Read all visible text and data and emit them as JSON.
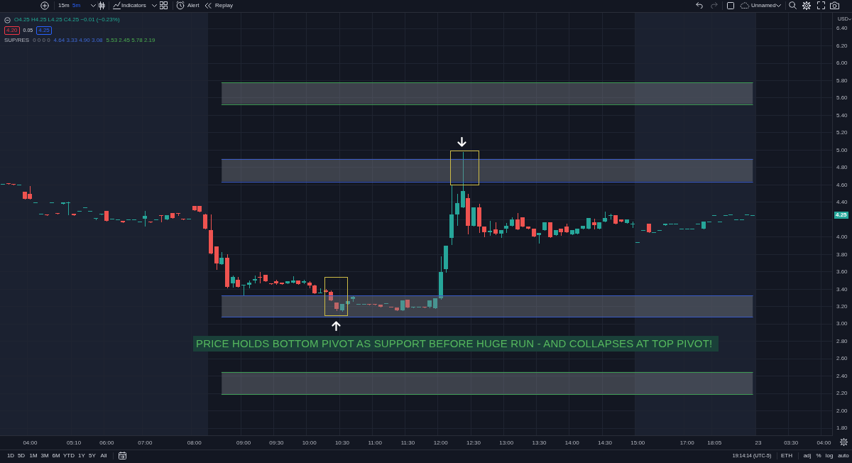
{
  "chart_data": {
    "type": "candlestick",
    "categories": [
      null,
      null,
      null,
      null,
      null,
      "04:00",
      null,
      null,
      null,
      null,
      null,
      null,
      null,
      "05:10",
      null,
      null,
      null,
      null,
      null,
      "06:00",
      null,
      null,
      null,
      null,
      null,
      null,
      "07:00",
      null,
      null,
      null,
      null,
      null,
      null,
      null,
      null,
      "08:00",
      null,
      null,
      null,
      null,
      null,
      null,
      null,
      null,
      "09:00",
      null,
      null,
      null,
      null,
      null,
      "09:30",
      null,
      null,
      null,
      null,
      null,
      "10:00",
      null,
      null,
      null,
      null,
      null,
      "10:30",
      null,
      null,
      null,
      null,
      null,
      "11:00",
      null,
      null,
      null,
      null,
      null,
      "11:30",
      null,
      null,
      null,
      null,
      null,
      "12:00",
      null,
      null,
      null,
      null,
      null,
      "12:30",
      null,
      null,
      null,
      null,
      null,
      "13:00",
      null,
      null,
      null,
      null,
      null,
      "13:30",
      null,
      null,
      null,
      null,
      null,
      "14:00",
      null,
      null,
      null,
      null,
      null,
      "14:30",
      null,
      null,
      null,
      null,
      null,
      "15:00",
      null,
      null,
      null,
      null,
      null,
      null,
      null,
      null,
      "17:00",
      null,
      null,
      null,
      null,
      "18:05",
      null,
      null,
      null,
      null,
      null,
      null,
      null,
      "23",
      null,
      null,
      null,
      null,
      null,
      "03:30",
      null,
      null,
      null,
      null,
      null,
      "04:00",
      null
    ],
    "ohlc": [
      [
        4.61,
        4.61,
        4.61,
        4.61
      ],
      [
        4.62,
        4.62,
        4.61,
        4.61
      ],
      [
        4.61,
        4.61,
        4.6,
        4.6
      ],
      [
        4.6,
        4.6,
        4.6,
        4.6
      ],
      [
        4.52,
        4.52,
        4.44,
        4.44
      ],
      [
        4.5,
        4.59,
        4.44,
        4.44
      ],
      [
        4.4,
        4.4,
        4.4,
        4.4
      ],
      [
        4.27,
        4.27,
        4.27,
        4.27
      ],
      [
        4.26,
        4.26,
        4.25,
        4.25
      ],
      [
        4.4,
        4.4,
        4.4,
        4.4
      ],
      [
        4.28,
        4.28,
        4.27,
        4.27
      ],
      [
        4.38,
        4.4,
        4.38,
        4.4
      ],
      [
        4.4,
        4.41,
        4.26,
        4.4
      ],
      [
        4.27,
        4.27,
        4.25,
        4.25
      ],
      [
        4.3,
        4.3,
        4.3,
        4.3
      ],
      [
        4.34,
        4.34,
        4.34,
        4.34
      ],
      [
        4.3,
        4.3,
        4.3,
        4.3
      ],
      [
        4.22,
        4.22,
        4.2,
        4.22
      ],
      [
        4.26,
        4.27,
        4.26,
        4.27
      ],
      [
        4.3,
        4.3,
        4.19,
        4.19
      ],
      [
        4.21,
        4.21,
        4.21,
        4.21
      ],
      [
        4.2,
        4.2,
        4.2,
        4.2
      ],
      [
        4.19,
        4.19,
        4.17,
        4.17
      ],
      [
        4.2,
        4.2,
        4.2,
        4.2
      ],
      [
        4.2,
        4.2,
        4.2,
        4.2
      ],
      [
        4.18,
        4.18,
        4.18,
        4.18
      ],
      [
        4.21,
        4.3,
        4.13,
        4.24
      ],
      [
        4.18,
        4.18,
        4.17,
        4.17
      ],
      [
        4.2,
        4.2,
        4.2,
        4.2
      ],
      [
        4.25,
        4.25,
        4.18,
        4.24
      ],
      [
        4.2,
        4.25,
        4.2,
        4.25
      ],
      [
        4.28,
        4.28,
        4.22,
        4.22
      ],
      [
        4.28,
        4.28,
        4.25,
        4.27
      ],
      [
        4.21,
        4.21,
        4.2,
        4.2
      ],
      [
        4.21,
        4.21,
        4.21,
        4.21
      ],
      [
        4.36,
        4.36,
        4.31,
        4.31
      ],
      [
        4.36,
        4.36,
        4.29,
        4.29
      ],
      [
        4.26,
        4.27,
        4.1,
        4.1
      ],
      [
        4.08,
        4.26,
        3.81,
        3.81
      ],
      [
        3.89,
        3.89,
        3.63,
        3.7
      ],
      [
        3.69,
        3.83,
        3.69,
        3.76
      ],
      [
        3.76,
        3.8,
        3.42,
        3.43
      ],
      [
        3.47,
        3.56,
        3.43,
        3.54
      ],
      [
        3.51,
        3.54,
        3.43,
        3.43
      ],
      [
        3.44,
        3.45,
        3.33,
        3.45
      ],
      [
        3.45,
        3.5,
        3.42,
        3.48
      ],
      [
        3.5,
        3.56,
        3.48,
        3.52
      ],
      [
        3.54,
        3.6,
        3.48,
        3.53
      ],
      [
        3.57,
        3.57,
        3.49,
        3.49
      ],
      [
        3.47,
        3.47,
        3.46,
        3.46
      ],
      [
        3.49,
        3.51,
        3.46,
        3.47
      ],
      [
        3.48,
        3.48,
        3.46,
        3.46
      ],
      [
        3.47,
        3.49,
        3.47,
        3.49
      ],
      [
        3.48,
        3.55,
        3.48,
        3.5
      ],
      [
        3.5,
        3.5,
        3.46,
        3.46
      ],
      [
        3.48,
        3.51,
        3.47,
        3.49
      ],
      [
        3.48,
        3.49,
        3.42,
        3.44
      ],
      [
        3.44,
        3.45,
        3.35,
        3.35
      ],
      [
        3.36,
        3.41,
        3.36,
        3.36
      ],
      [
        3.39,
        3.4,
        3.37,
        3.37
      ],
      [
        3.37,
        3.39,
        3.27,
        3.27
      ],
      [
        3.25,
        3.25,
        3.16,
        3.17
      ],
      [
        3.16,
        3.23,
        3.15,
        3.23
      ],
      [
        3.23,
        3.26,
        3.23,
        3.26
      ],
      [
        3.29,
        3.32,
        3.26,
        3.31
      ],
      [
        3.23,
        3.23,
        3.23,
        3.23
      ],
      [
        3.23,
        3.23,
        3.23,
        3.23
      ],
      [
        3.23,
        3.23,
        3.22,
        3.22
      ],
      [
        3.23,
        3.23,
        3.22,
        3.22
      ],
      [
        3.22,
        3.22,
        3.2,
        3.2
      ],
      [
        3.24,
        3.24,
        3.24,
        3.24
      ],
      [
        3.2,
        3.2,
        3.2,
        3.2
      ],
      [
        3.19,
        3.19,
        3.16,
        3.16
      ],
      [
        3.16,
        3.27,
        3.16,
        3.27
      ],
      [
        3.28,
        3.28,
        3.19,
        3.19
      ],
      [
        3.19,
        3.2,
        3.19,
        3.2
      ],
      [
        3.2,
        3.2,
        3.2,
        3.2
      ],
      [
        3.2,
        3.2,
        3.19,
        3.19
      ],
      [
        3.2,
        3.27,
        3.19,
        3.27
      ],
      [
        3.18,
        3.3,
        3.18,
        3.3
      ],
      [
        3.3,
        3.78,
        3.29,
        3.6
      ],
      [
        3.63,
        3.9,
        3.6,
        3.9
      ],
      [
        3.99,
        4.6,
        3.92,
        4.26
      ],
      [
        4.26,
        4.5,
        4.14,
        4.39
      ],
      [
        4.34,
        4.98,
        4.34,
        4.53
      ],
      [
        4.45,
        4.5,
        4.04,
        4.13
      ],
      [
        4.13,
        4.34,
        4.13,
        4.34
      ],
      [
        4.34,
        4.38,
        4.06,
        4.12
      ],
      [
        4.12,
        4.12,
        4.01,
        4.06
      ],
      [
        4.06,
        4.19,
        4.02,
        4.07
      ],
      [
        4.09,
        4.17,
        4.03,
        4.04
      ],
      [
        4.04,
        4.08,
        4,
        4.08
      ],
      [
        4.1,
        4.16,
        4.06,
        4.13
      ],
      [
        4.13,
        4.23,
        4.13,
        4.2
      ],
      [
        4.2,
        4.28,
        4.09,
        4.09
      ],
      [
        4.23,
        4.23,
        4.12,
        4.12
      ],
      [
        4.12,
        4.12,
        4.1,
        4.1
      ],
      [
        4.1,
        4.1,
        4.01,
        4.01
      ],
      [
        4.02,
        4.05,
        3.93,
        4.05
      ],
      [
        4.08,
        4.17,
        4.08,
        4.17
      ],
      [
        4.17,
        4.17,
        4,
        4
      ],
      [
        4.02,
        4.08,
        4.02,
        4.08
      ],
      [
        4.1,
        4.1,
        4.02,
        4.06
      ],
      [
        4.12,
        4.15,
        4.06,
        4.06
      ],
      [
        4.03,
        4.08,
        4.03,
        4.08
      ],
      [
        4.04,
        4.1,
        4.04,
        4.1
      ],
      [
        4.1,
        4.13,
        4.1,
        4.13
      ],
      [
        4.1,
        4.22,
        4.1,
        4.22
      ],
      [
        4.17,
        4.21,
        4.1,
        4.14
      ],
      [
        4.1,
        4.17,
        4.1,
        4.17
      ],
      [
        4.18,
        4.29,
        4.18,
        4.22
      ],
      [
        4.25,
        4.27,
        4.21,
        4.25
      ],
      [
        4.25,
        4.25,
        4.15,
        4.15
      ],
      [
        4.2,
        4.2,
        4.18,
        4.18
      ],
      [
        4.16,
        4.2,
        4.16,
        4.2
      ],
      [
        4.15,
        4.18,
        4.11,
        4.15
      ],
      [
        3.94,
        3.94,
        3.94,
        3.94
      ],
      [
        4.08,
        4.08,
        4.08,
        4.08
      ],
      [
        4.15,
        4.15,
        4.06,
        4.06
      ],
      [
        4.06,
        4.06,
        4.06,
        4.06
      ],
      [
        4.08,
        4.08,
        4.08,
        4.08
      ],
      [
        4.14,
        4.15,
        4.14,
        4.15
      ],
      [
        4.15,
        4.15,
        4.15,
        4.15
      ],
      [
        4.15,
        4.15,
        4.15,
        4.15
      ],
      [
        4.1,
        4.1,
        4.1,
        4.1
      ],
      [
        4.1,
        4.1,
        4.1,
        4.1
      ],
      [
        4.1,
        4.1,
        4.1,
        4.1
      ],
      [
        4.15,
        4.15,
        4.15,
        4.15
      ],
      [
        4.1,
        4.18,
        4.1,
        4.18
      ],
      [
        4.18,
        4.18,
        4.18,
        4.18
      ],
      [
        4.25,
        4.25,
        4.25,
        4.25
      ],
      [
        4.18,
        4.18,
        4.18,
        4.18
      ],
      [
        4.25,
        4.25,
        4.25,
        4.25
      ],
      [
        4.26,
        4.26,
        4.26,
        4.26
      ],
      [
        4.2,
        4.2,
        4.2,
        4.2
      ],
      [
        4.2,
        4.2,
        4.2,
        4.2
      ],
      [
        4.26,
        4.26,
        4.26,
        4.26
      ],
      [
        4.25,
        4.25,
        4.25,
        4.25
      ],
      null,
      null,
      null,
      null,
      null,
      null,
      null,
      null,
      null,
      null,
      null,
      null,
      null,
      null
    ],
    "colors": [
      "#26a69a",
      "#ef5350",
      "#ef5350",
      "#26a69a",
      "#ef5350",
      "#ef5350",
      "#26a69a",
      "#26a69a",
      "#ef5350",
      "#26a69a",
      "#ef5350",
      "#26a69a",
      "#26a69a",
      "#ef5350",
      "#26a69a",
      "#26a69a",
      "#26a69a",
      "#26a69a",
      "#26a69a",
      "#ef5350",
      "#26a69a",
      "#26a69a",
      "#ef5350",
      "#26a69a",
      "#26a69a",
      "#26a69a",
      "#26a69a",
      "#ef5350",
      "#26a69a",
      "#ef5350",
      "#26a69a",
      "#ef5350",
      "#ef5350",
      "#ef5350",
      "#26a69a",
      "#ef5350",
      "#ef5350",
      "#ef5350",
      "#ef5350",
      "#ef5350",
      "#26a69a",
      "#ef5350",
      "#26a69a",
      "#ef5350",
      "#26a69a",
      "#26a69a",
      "#26a69a",
      "#ef5350",
      "#ef5350",
      "#ef5350",
      "#ef5350",
      "#ef5350",
      "#26a69a",
      "#26a69a",
      "#ef5350",
      "#26a69a",
      "#ef5350",
      "#ef5350",
      "#26a69a",
      "#ef5350",
      "#ef5350",
      "#ef5350",
      "#26a69a",
      "#26a69a",
      "#26a69a",
      "#26a69a",
      "#26a69a",
      "#ef5350",
      "#ef5350",
      "#ef5350",
      "#26a69a",
      "#ef5350",
      "#ef5350",
      "#26a69a",
      "#ef5350",
      "#26a69a",
      "#26a69a",
      "#ef5350",
      "#26a69a",
      "#26a69a",
      "#26a69a",
      "#26a69a",
      "#26a69a",
      "#26a69a",
      "#26a69a",
      "#ef5350",
      "#26a69a",
      "#ef5350",
      "#ef5350",
      "#26a69a",
      "#ef5350",
      "#26a69a",
      "#26a69a",
      "#26a69a",
      "#ef5350",
      "#ef5350",
      "#ef5350",
      "#ef5350",
      "#26a69a",
      "#26a69a",
      "#ef5350",
      "#26a69a",
      "#ef5350",
      "#ef5350",
      "#26a69a",
      "#26a69a",
      "#26a69a",
      "#26a69a",
      "#ef5350",
      "#26a69a",
      "#26a69a",
      "#26a69a",
      "#ef5350",
      "#ef5350",
      "#26a69a",
      "#26a69a",
      "#26a69a",
      "#26a69a",
      "#ef5350",
      "#26a69a",
      "#26a69a",
      "#26a69a",
      "#26a69a",
      "#26a69a",
      "#26a69a",
      "#26a69a",
      "#26a69a",
      "#26a69a",
      "#26a69a",
      "#26a69a",
      "#26a69a",
      "#26a69a",
      "#26a69a",
      "#26a69a",
      "#26a69a",
      "#26a69a",
      "#26a69a",
      "#26a69a",
      null,
      null,
      null,
      null,
      null,
      null,
      null,
      null,
      null,
      null,
      null,
      null,
      null,
      null
    ],
    "ylim": [
      1.72,
      6.58
    ],
    "yticks": [
      {
        "value": 1.8,
        "label": "1.80"
      },
      {
        "value": 2,
        "label": "2.00"
      },
      {
        "value": 2.2,
        "label": "2.20"
      },
      {
        "value": 2.4,
        "label": "2.40"
      },
      {
        "value": 2.6,
        "label": "2.60"
      },
      {
        "value": 2.8,
        "label": "2.80"
      },
      {
        "value": 3,
        "label": "3.00"
      },
      {
        "value": 3.2,
        "label": "3.20"
      },
      {
        "value": 3.4,
        "label": "3.40"
      },
      {
        "value": 3.6,
        "label": "3.60"
      },
      {
        "value": 3.8,
        "label": "3.80"
      },
      {
        "value": 4,
        "label": "4.00"
      },
      {
        "value": 4.2,
        "label": null
      },
      {
        "value": 4.4,
        "label": "4.40"
      },
      {
        "value": 4.6,
        "label": "4.60"
      },
      {
        "value": 4.8,
        "label": "4.80"
      },
      {
        "value": 5,
        "label": "5.00"
      },
      {
        "value": 5.2,
        "label": "5.20"
      },
      {
        "value": 5.4,
        "label": "5.40"
      },
      {
        "value": 5.6,
        "label": "5.60"
      },
      {
        "value": 5.8,
        "label": "5.80"
      },
      {
        "value": 6,
        "label": "6.00"
      },
      {
        "value": 6.2,
        "label": "6.20"
      },
      {
        "value": 6.4,
        "label": "6.40"
      }
    ],
    "grid": true,
    "bands": [
      {
        "axis": "y",
        "from": 5.53,
        "to": 5.78,
        "color": "#787b86"
      },
      {
        "axis": "y",
        "from": 4.64,
        "to": 4.9,
        "color": "#787b86"
      },
      {
        "axis": "y",
        "from": 3.08,
        "to": 3.33,
        "color": "#787b86"
      },
      {
        "axis": "y",
        "from": 2.19,
        "to": 2.45,
        "color": "#787b86"
      }
    ],
    "ref_lines": [
      {
        "axis": "y",
        "value": 5.78,
        "color": "#3e9b54"
      },
      {
        "axis": "y",
        "value": 5.53,
        "color": "#3e9b54"
      },
      {
        "axis": "y",
        "value": 4.9,
        "color": "#3a5bc7"
      },
      {
        "axis": "y",
        "value": 4.64,
        "color": "#3a5bc7"
      },
      {
        "axis": "y",
        "value": 3.33,
        "color": "#3a5bc7"
      },
      {
        "axis": "y",
        "value": 3.08,
        "color": "#3a5bc7"
      },
      {
        "axis": "y",
        "value": 2.45,
        "color": "#3e9b54"
      },
      {
        "axis": "y",
        "value": 2.19,
        "color": "#3e9b54"
      }
    ],
    "annotations": [
      "PRICE HOLDS BOTTOM PIVOT AS SUPPORT BEFORE HUGE RUN - AND COLLAPSES AT TOP PIVOT!",
      {
        "text": "4.25",
        "y": 4.25
      },
      "15m",
      "5m",
      "Indicators",
      "Alert",
      "Replay",
      "Unnamed",
      "O4.25 H4.25 L4.25 C4.25 −0.01 (−0.23%)",
      "4.20",
      "0.05",
      "4.25",
      "SUP/RES",
      "0 0 0 0",
      "4.64 3.33 4.90 3.08",
      "5.53 2.45 5.78 2.19",
      "USD",
      "1D",
      "5D",
      "1M",
      "3M",
      "6M",
      "YTD",
      "1Y",
      "5Y",
      "All",
      "19:14:14 (UTC-5)",
      "ETH",
      "adj",
      "%",
      "log",
      "auto"
    ]
  }
}
